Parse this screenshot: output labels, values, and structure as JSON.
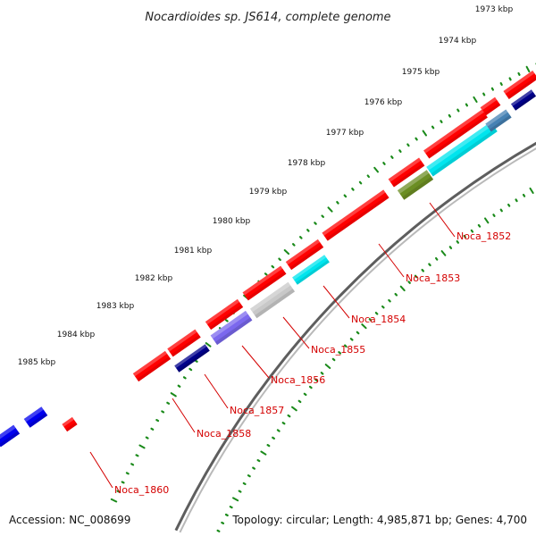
{
  "title": "Nocardioides sp. JS614, complete genome",
  "footer": {
    "accession": "Accession: NC_008699",
    "summary": "Topology: circular; Length: 4,985,871 bp; Genes: 4,700"
  },
  "kbp_labels": [
    "1973 kbp",
    "1974 kbp",
    "1975 kbp",
    "1976 kbp",
    "1977 kbp",
    "1978 kbp",
    "1979 kbp",
    "1980 kbp",
    "1981 kbp",
    "1982 kbp",
    "1983 kbp",
    "1984 kbp",
    "1985 kbp"
  ],
  "gene_labels": [
    "Noca_1852",
    "Noca_1853",
    "Noca_1854",
    "Noca_1855",
    "Noca_1856",
    "Noca_1857",
    "Noca_1858",
    "Noca_1860"
  ],
  "colors": {
    "backbone": "#808080",
    "tick": "#1a8a1a",
    "gene_red": "#ff0000",
    "label_red": "#d40000",
    "blue": "#0000ee",
    "navy": "#00008b",
    "slate": "#7b68ee",
    "silver": "#c8c8c8",
    "cyan": "#00e5ee",
    "olive": "#6b8e23",
    "steel": "#4682b4"
  }
}
